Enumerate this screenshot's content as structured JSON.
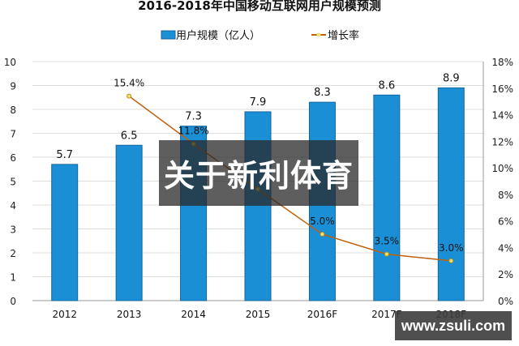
{
  "chart_data": {
    "type": "bar+line",
    "title": "2016-2018年中国移动互联网用户规模预测",
    "categories": [
      "2012",
      "2013",
      "2014",
      "2015",
      "2016F",
      "2017F",
      "2018F"
    ],
    "series": [
      {
        "name": "用户规模（亿人）",
        "type": "bar",
        "axis": "left",
        "values": [
          5.7,
          6.5,
          7.3,
          7.9,
          8.3,
          8.6,
          8.9
        ],
        "labels": [
          "5.7",
          "6.5",
          "7.3",
          "7.9",
          "8.3",
          "8.6",
          "8.9"
        ],
        "color": "#1a8fd6"
      },
      {
        "name": "增长率",
        "type": "line",
        "axis": "right",
        "values": [
          null,
          15.4,
          11.8,
          8.4,
          5.0,
          3.5,
          3.0
        ],
        "labels": [
          "",
          "15.4%",
          "11.8%",
          "",
          "5.0%",
          "3.5%",
          "3.0%"
        ],
        "color": "#c0600a",
        "marker_color": "#f2e070"
      }
    ],
    "left_axis": {
      "ylim": [
        0,
        10
      ],
      "ticks": [
        "0",
        "1",
        "2",
        "3",
        "4",
        "5",
        "6",
        "7",
        "8",
        "9",
        "10"
      ]
    },
    "right_axis": {
      "ylim": [
        0,
        18
      ],
      "ticks": [
        "0%",
        "2%",
        "4%",
        "6%",
        "8%",
        "10%",
        "12%",
        "14%",
        "16%",
        "18%"
      ]
    },
    "grid": true,
    "legend": "top"
  },
  "overlay": {
    "text": "关于新利体育",
    "watermark": "www.zsuli.com"
  }
}
